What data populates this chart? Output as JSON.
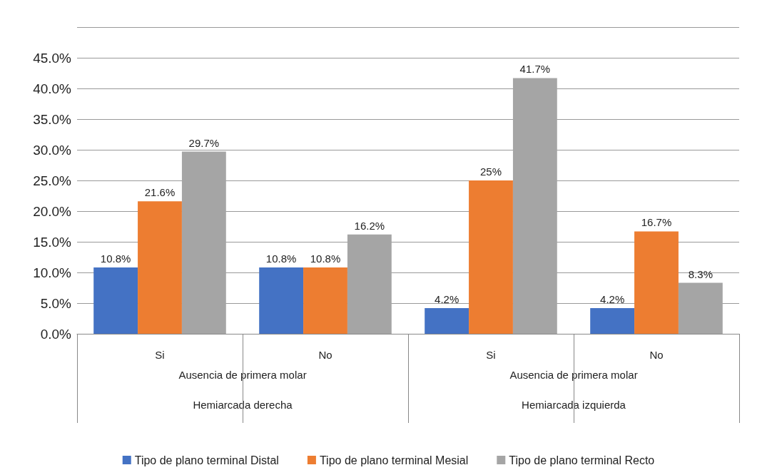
{
  "chart_data": {
    "type": "bar",
    "categories": [
      "Si",
      "No",
      "Si",
      "No"
    ],
    "series": [
      {
        "name": "Tipo de plano terminal Distal",
        "color": "#4472c4",
        "values": [
          10.8,
          10.8,
          4.2,
          4.2
        ],
        "value_labels": [
          "10.8%",
          "10.8%",
          "4.2%",
          "4.2%"
        ]
      },
      {
        "name": "Tipo de plano terminal Mesial",
        "color": "#ed7d31",
        "values": [
          21.6,
          10.8,
          25,
          16.7
        ],
        "value_labels": [
          "21.6%",
          "10.8%",
          "25%",
          "16.7%"
        ]
      },
      {
        "name": "Tipo de plano terminal Recto",
        "color": "#a5a5a5",
        "values": [
          29.7,
          16.2,
          41.7,
          8.3
        ],
        "value_labels": [
          "29.7%",
          "16.2%",
          "41.7%",
          "8.3%"
        ]
      }
    ],
    "ylim": [
      0,
      50
    ],
    "yticks": [
      {
        "value": 0,
        "label": "0.0%"
      },
      {
        "value": 5,
        "label": "5.0%"
      },
      {
        "value": 10,
        "label": "10.0%"
      },
      {
        "value": 15,
        "label": "15.0%"
      },
      {
        "value": 20,
        "label": "20.0%"
      },
      {
        "value": 25,
        "label": "25.0%"
      },
      {
        "value": 30,
        "label": "30.0%"
      },
      {
        "value": 35,
        "label": "35.0%"
      },
      {
        "value": 40,
        "label": "40.0%"
      },
      {
        "value": 45,
        "label": "45.0%"
      },
      {
        "value": 50,
        "label": null
      }
    ],
    "annotations": [
      "Ausencia de primera molar",
      "Ausencia de primera molar",
      "Hemiarcada derecha",
      "Hemiarcada izquierda"
    ],
    "grid": true,
    "legend": "bottom"
  }
}
